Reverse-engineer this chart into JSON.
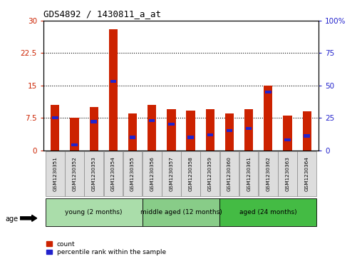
{
  "title": "GDS4892 / 1430811_a_at",
  "samples": [
    "GSM1230351",
    "GSM1230352",
    "GSM1230353",
    "GSM1230354",
    "GSM1230355",
    "GSM1230356",
    "GSM1230357",
    "GSM1230358",
    "GSM1230359",
    "GSM1230360",
    "GSM1230361",
    "GSM1230362",
    "GSM1230363",
    "GSM1230364"
  ],
  "count_values": [
    10.5,
    7.5,
    10.0,
    28.0,
    8.5,
    10.5,
    9.5,
    9.2,
    9.5,
    8.5,
    9.5,
    15.0,
    8.0,
    9.0
  ],
  "percentile_values": [
    25.0,
    4.0,
    22.0,
    53.0,
    10.0,
    23.0,
    20.0,
    10.0,
    12.0,
    15.0,
    17.0,
    45.0,
    8.0,
    11.0
  ],
  "bar_color": "#CC2200",
  "blue_color": "#2222CC",
  "left_ylim": [
    0,
    30
  ],
  "right_ylim": [
    0,
    100
  ],
  "left_yticks": [
    0,
    7.5,
    15,
    22.5,
    30
  ],
  "right_yticks": [
    0,
    25,
    50,
    75,
    100
  ],
  "left_yticklabels": [
    "0",
    "7.5",
    "15",
    "22.5",
    "30"
  ],
  "right_yticklabels": [
    "0",
    "25",
    "50",
    "75",
    "100%"
  ],
  "groups": [
    {
      "label": "young (2 months)",
      "start": 0,
      "end": 5,
      "color": "#AADDAA"
    },
    {
      "label": "middle aged (12 months)",
      "start": 5,
      "end": 9,
      "color": "#88CC88"
    },
    {
      "label": "aged (24 months)",
      "start": 9,
      "end": 14,
      "color": "#44BB44"
    }
  ],
  "age_label": "age",
  "legend_count_label": "count",
  "legend_percentile_label": "percentile rank within the sample",
  "grid_color": "#000000",
  "bar_width": 0.45,
  "bg_color": "#FFFFFF",
  "plot_bg_color": "#FFFFFF",
  "tick_label_color_left": "#CC2200",
  "tick_label_color_right": "#2222CC"
}
